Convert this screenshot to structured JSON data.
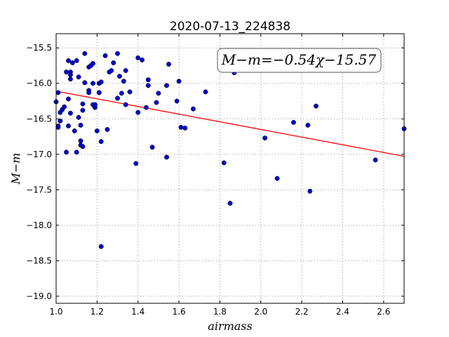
{
  "chart_data": {
    "type": "scatter",
    "title": "2020-07-13_224838",
    "xlabel": "airmass",
    "ylabel": "M−m",
    "xlim": [
      1.0,
      2.7
    ],
    "ylim": [
      -19.1,
      -15.3
    ],
    "y_inverted": true,
    "grid": true,
    "x_ticks": [
      "1.0",
      "1.2",
      "1.4",
      "1.6",
      "1.8",
      "2.0",
      "2.2",
      "2.4",
      "2.6"
    ],
    "y_ticks": [
      "−15.5",
      "−16.0",
      "−16.5",
      "−17.0",
      "−17.5",
      "−18.0",
      "−18.5",
      "−19.0"
    ],
    "annotation": "M−m=−0.54χ−15.57",
    "fit": {
      "slope": -0.54,
      "intercept": -15.57,
      "color": "#ff0000"
    },
    "point_color": "#0000cc",
    "points": [
      [
        1.0,
        -16.26
      ],
      [
        1.01,
        -16.13
      ],
      [
        1.01,
        -16.6
      ],
      [
        1.01,
        -16.62
      ],
      [
        1.02,
        -16.41
      ],
      [
        1.02,
        -16.53
      ],
      [
        1.03,
        -16.37
      ],
      [
        1.04,
        -16.33
      ],
      [
        1.05,
        -15.84
      ],
      [
        1.05,
        -16.97
      ],
      [
        1.06,
        -15.68
      ],
      [
        1.06,
        -16.22
      ],
      [
        1.06,
        -16.6
      ],
      [
        1.07,
        -15.84
      ],
      [
        1.07,
        -15.88
      ],
      [
        1.07,
        -15.94
      ],
      [
        1.07,
        -16.42
      ],
      [
        1.08,
        -15.71
      ],
      [
        1.09,
        -16.67
      ],
      [
        1.1,
        -15.68
      ],
      [
        1.1,
        -16.97
      ],
      [
        1.11,
        -15.91
      ],
      [
        1.11,
        -16.48
      ],
      [
        1.12,
        -16.59
      ],
      [
        1.12,
        -16.81
      ],
      [
        1.12,
        -16.87
      ],
      [
        1.13,
        -16.89
      ],
      [
        1.13,
        -16.38
      ],
      [
        1.13,
        -16.29
      ],
      [
        1.14,
        -15.99
      ],
      [
        1.14,
        -15.58
      ],
      [
        1.16,
        -15.77
      ],
      [
        1.16,
        -16.1
      ],
      [
        1.16,
        -16.13
      ],
      [
        1.17,
        -15.75
      ],
      [
        1.18,
        -16.0
      ],
      [
        1.18,
        -15.72
      ],
      [
        1.18,
        -16.3
      ],
      [
        1.19,
        -16.34
      ],
      [
        1.19,
        -16.3
      ],
      [
        1.2,
        -16.67
      ],
      [
        1.21,
        -16.13
      ],
      [
        1.21,
        -16.13
      ],
      [
        1.21,
        -16.0
      ],
      [
        1.22,
        -16.82
      ],
      [
        1.22,
        -15.98
      ],
      [
        1.22,
        -18.3
      ],
      [
        1.24,
        -15.61
      ],
      [
        1.25,
        -16.65
      ],
      [
        1.26,
        -15.84
      ],
      [
        1.27,
        -15.82
      ],
      [
        1.28,
        -15.71
      ],
      [
        1.3,
        -15.58
      ],
      [
        1.3,
        -16.21
      ],
      [
        1.31,
        -15.9
      ],
      [
        1.32,
        -16.14
      ],
      [
        1.33,
        -15.97
      ],
      [
        1.34,
        -15.82
      ],
      [
        1.34,
        -16.3
      ],
      [
        1.36,
        -16.12
      ],
      [
        1.39,
        -17.13
      ],
      [
        1.4,
        -15.64
      ],
      [
        1.4,
        -16.41
      ],
      [
        1.42,
        -15.67
      ],
      [
        1.44,
        -16.34
      ],
      [
        1.45,
        -16.03
      ],
      [
        1.45,
        -15.95
      ],
      [
        1.47,
        -16.9
      ],
      [
        1.49,
        -16.27
      ],
      [
        1.5,
        -16.14
      ],
      [
        1.54,
        -17.04
      ],
      [
        1.54,
        -16.03
      ],
      [
        1.55,
        -15.73
      ],
      [
        1.59,
        -16.25
      ],
      [
        1.6,
        -15.97
      ],
      [
        1.61,
        -16.62
      ],
      [
        1.63,
        -16.63
      ],
      [
        1.67,
        -16.36
      ],
      [
        1.73,
        -16.12
      ],
      [
        1.82,
        -17.12
      ],
      [
        1.85,
        -17.69
      ],
      [
        1.87,
        -15.85
      ],
      [
        2.02,
        -16.77
      ],
      [
        2.07,
        -15.8
      ],
      [
        2.08,
        -17.34
      ],
      [
        2.16,
        -16.55
      ],
      [
        2.23,
        -16.59
      ],
      [
        2.24,
        -17.52
      ],
      [
        2.27,
        -16.32
      ],
      [
        2.56,
        -17.08
      ],
      [
        2.7,
        -16.64
      ]
    ]
  }
}
